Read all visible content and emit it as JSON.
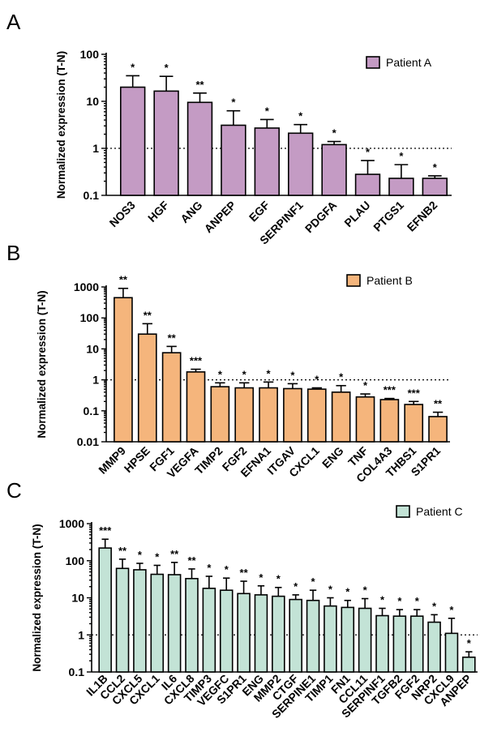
{
  "chart_data": [
    {
      "panel": "A",
      "type": "bar",
      "ylabel": "Normalized expression (T-N)",
      "yscale": "log",
      "ylim": [
        0.1,
        100
      ],
      "yticks": [
        "0.1",
        "1",
        "10",
        "100"
      ],
      "reference_line": 1,
      "legend": "Patient A",
      "legend_position": "top-right",
      "color": "#c49bc4",
      "categories": [
        "NOS3",
        "HGF",
        "ANG",
        "ANPEP",
        "EGF",
        "SERPINF1",
        "PDGFA",
        "PLAU",
        "PTGS1",
        "EFNB2"
      ],
      "values": [
        20,
        16.5,
        9.5,
        3.1,
        2.7,
        2.1,
        1.2,
        0.28,
        0.23,
        0.23
      ],
      "errors": [
        35,
        34,
        15,
        6.3,
        4.1,
        3.2,
        1.4,
        0.55,
        0.45,
        0.26
      ],
      "significance": [
        "*",
        "*",
        "**",
        "*",
        "*",
        "*",
        "*",
        "*",
        "*",
        "*"
      ]
    },
    {
      "panel": "B",
      "type": "bar",
      "ylabel": "Normalized expression (T-N)",
      "yscale": "log",
      "ylim": [
        0.01,
        1000
      ],
      "yticks": [
        "0.01",
        "0.1",
        "1",
        "10",
        "100",
        "1000"
      ],
      "reference_line": 1,
      "legend": "Patient B",
      "legend_position": "top-right",
      "color": "#f5b57c",
      "categories": [
        "MMP9",
        "HPSE",
        "FGF1",
        "VEGFA",
        "TIMP2",
        "FGF2",
        "EFNA1",
        "ITGAV",
        "CXCL1",
        "ENG",
        "TNF",
        "COL4A3",
        "THBS1",
        "S1PR1"
      ],
      "values": [
        450,
        30,
        7.5,
        1.8,
        0.6,
        0.55,
        0.55,
        0.52,
        0.5,
        0.4,
        0.28,
        0.23,
        0.16,
        0.065
      ],
      "errors": [
        900,
        65,
        12,
        2.2,
        0.8,
        0.8,
        0.85,
        0.75,
        0.55,
        0.65,
        0.35,
        0.25,
        0.2,
        0.09
      ],
      "significance": [
        "**",
        "**",
        "**",
        "***",
        "*",
        "*",
        "*",
        "*",
        "*",
        "*",
        "*",
        "***",
        "***",
        "**"
      ]
    },
    {
      "panel": "C",
      "type": "bar",
      "ylabel": "Normalized expression (T-N)",
      "yscale": "log",
      "ylim": [
        0.1,
        1000
      ],
      "yticks": [
        "0.1",
        "1",
        "10",
        "100",
        "1000"
      ],
      "reference_line": 1,
      "legend": "Patient C",
      "legend_position": "top-right",
      "color": "#c3e3d6",
      "categories": [
        "IL1B",
        "CCL2",
        "CXCL5",
        "CXCL1",
        "IL6",
        "CXCL8",
        "TIMP3",
        "VEGFC",
        "S1PR1",
        "ENG",
        "MMP2",
        "CTGF",
        "SERPINE1",
        "TIMP1",
        "FN1",
        "CCL11",
        "SERPINF1",
        "TGFB2",
        "FGF2",
        "NRP2",
        "CXCL9",
        "ANPEP"
      ],
      "values": [
        220,
        62,
        57,
        43,
        42,
        33,
        18,
        16,
        13,
        12,
        11,
        9,
        8.5,
        6,
        5.5,
        5.2,
        3.3,
        3.2,
        3.2,
        2.2,
        1.1,
        0.25
      ],
      "errors": [
        380,
        110,
        85,
        75,
        90,
        60,
        38,
        34,
        28,
        21,
        19,
        12,
        16,
        10,
        8.5,
        9.5,
        5.2,
        4.8,
        4.8,
        3.5,
        2.8,
        0.35
      ],
      "significance": [
        "***",
        "**",
        "*",
        "*",
        "**",
        "**",
        "*",
        "*",
        "**",
        "*",
        "*",
        "*",
        "*",
        "*",
        "*",
        "*",
        "*",
        "*",
        "*",
        "*",
        "*",
        "*"
      ]
    }
  ]
}
